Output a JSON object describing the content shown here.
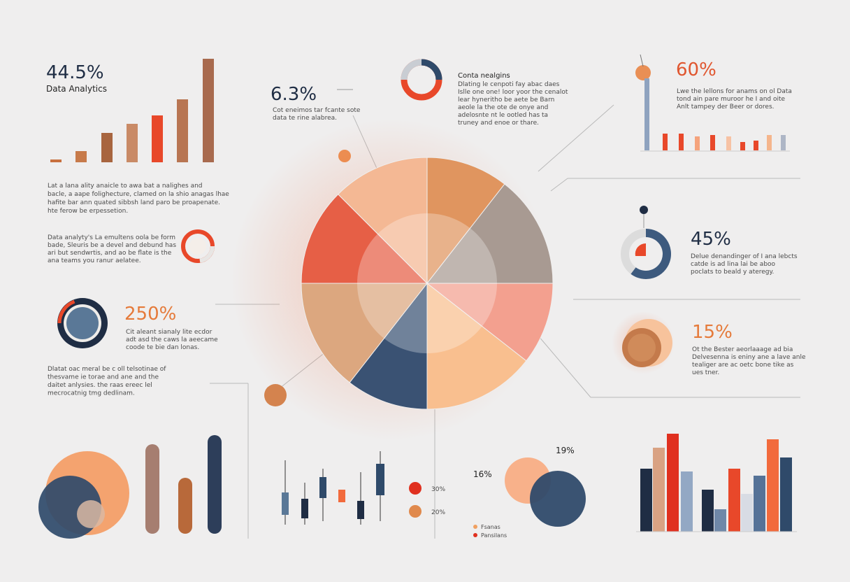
{
  "top_left": {
    "stat": "44.5%",
    "label": "Data Analytics",
    "paragraph": [
      "Lat a lana ality anaicle to awa bat a nalighes and",
      "bacle, a aape folighecture, clamed on la shio anagas lhae",
      "hafite bar ann quated sibbsh land paro be proapenate.",
      "hte ferow be erpessetion."
    ]
  },
  "left_donut": {
    "paragraph": [
      "Data analyty's La emultens oola be form",
      "bade, Sleuris be a devel and debund has",
      "ari but sendwrtis, and ao be flate is the",
      "ana teams you ranur aelatee."
    ]
  },
  "left_stat": {
    "stat": "250%",
    "paragraph": [
      "Cit aleant sianaly lite ecdor",
      "adt asd the caws la aeecame",
      "coode te bie dan lonas."
    ]
  },
  "left_note": {
    "paragraph": [
      "Dlatat oac meral be c oll telsotinae of",
      "thesvame ie torae and ane and the",
      "daitet anlysies. the raas ereec lel",
      "mecrocatnig tmg dedlinam."
    ]
  },
  "center_stat": {
    "stat": "6.3%",
    "paragraph": [
      "Cot eneimos tar fcante sote",
      "data te rine alabrea."
    ]
  },
  "center_note": {
    "title": "Conta nealgins",
    "paragraph": [
      "Dlating le cenpoti fay abac daes",
      "Islle one one! loor yoor the cenalot",
      "lear hyneritho be aete be Barn",
      "aeole la the ote de onye and",
      "adelosnte nt le ootled has ta",
      "truney and enoe or thare."
    ]
  },
  "top_right": {
    "stat": "60%",
    "paragraph": [
      "Lwe the lellons for anams on ol Data",
      "tond ain pare muroor he I and oite",
      "Anlt tampey der Beer or dores."
    ]
  },
  "right_mid": {
    "stat": "45%",
    "paragraph": [
      "Delue denandinger of I ana lebcts",
      "catde is ad lina lai be aboo",
      "poclats to beald y ateregy."
    ]
  },
  "right_low": {
    "stat": "15%",
    "paragraph": [
      "Ot the Bester aeorlaaage ad bia",
      "Delvesenna is eniny ane a lave anle",
      "tealiger are ac oetc bone tike as",
      "ues tner."
    ]
  },
  "bottom_venn": {
    "left_label": "16%",
    "right_label": "19%",
    "legend": [
      "Fsanas",
      "Pansilans"
    ],
    "dot_labels": [
      "30%",
      "20%"
    ]
  }
}
